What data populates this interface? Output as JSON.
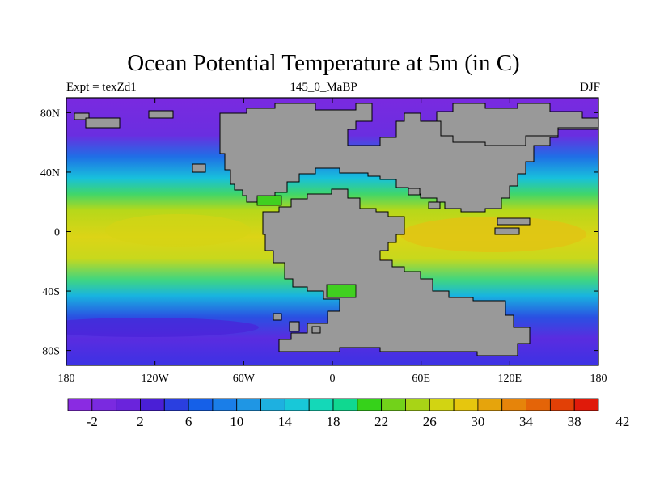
{
  "title": "Ocean Potential Temperature at 5m (in C)",
  "left_label": "Expt = texZd1",
  "center_label": "145_0_MaBP",
  "right_label": "DJF",
  "lat_ticks": [
    "80N",
    "40N",
    "0",
    "40S",
    "80S"
  ],
  "lon_ticks": [
    "180",
    "120W",
    "60W",
    "0",
    "60E",
    "120E",
    "180"
  ],
  "colorbar": {
    "colors": [
      "#8a2be2",
      "#7a2ae0",
      "#6a24dc",
      "#4a1fd6",
      "#2a3fe0",
      "#1560e8",
      "#1a7ee8",
      "#1f96e4",
      "#1eb0e0",
      "#18c8d8",
      "#14d8b8",
      "#10d890",
      "#36d21a",
      "#72d21a",
      "#a8d416",
      "#d2d412",
      "#e6c60e",
      "#e6a40c",
      "#e6840a",
      "#e46408",
      "#e24006",
      "#e01a0a"
    ],
    "labels": [
      "-2",
      "2",
      "6",
      "10",
      "14",
      "18",
      "22",
      "26",
      "30",
      "34",
      "38",
      "42"
    ]
  },
  "colors": {
    "land": "#999999",
    "ocean_cold": "#7e2ed8",
    "ocean_warm": "#d8d418"
  }
}
